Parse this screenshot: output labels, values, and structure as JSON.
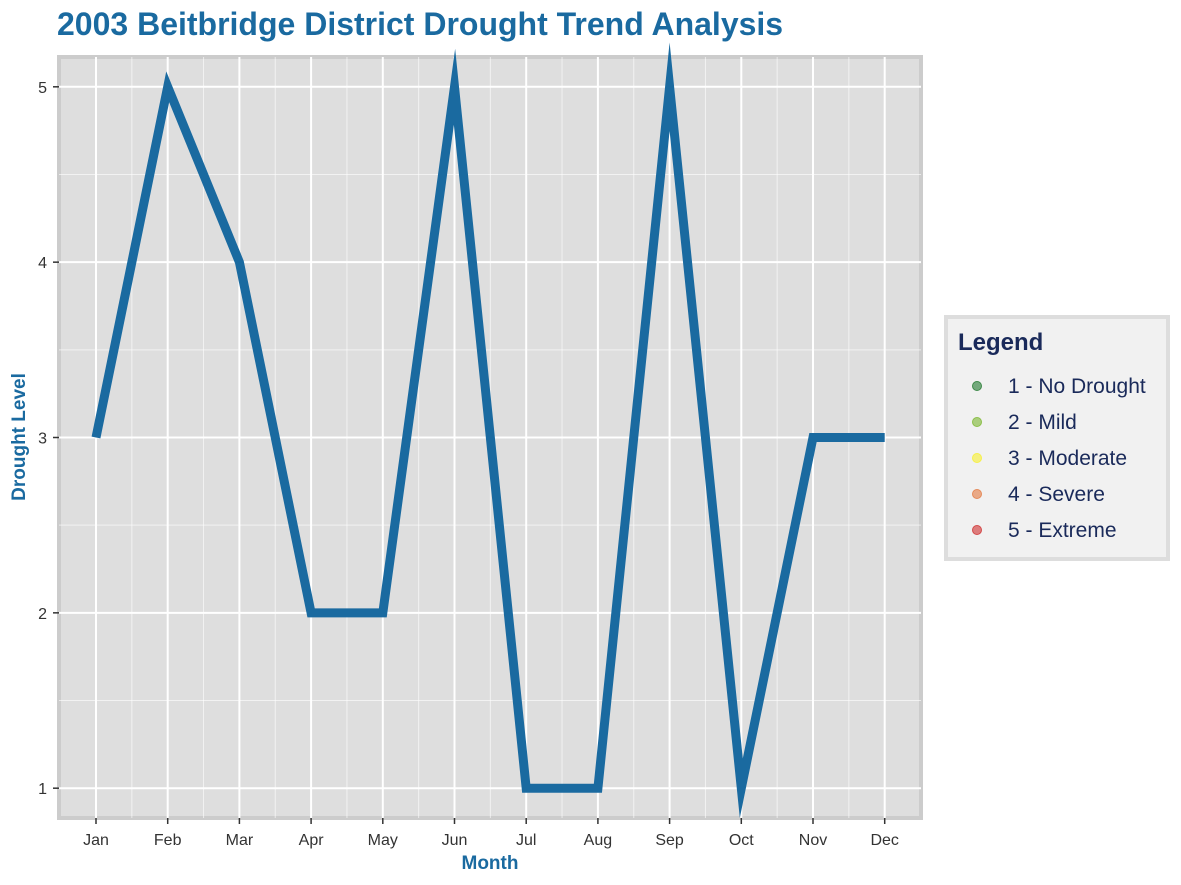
{
  "colors": {
    "title": "#1a6aa0",
    "axis_title": "#1a6aa0",
    "line": "#1a6aa0",
    "panel_bg": "#dedede",
    "panel_border": "#cccccc",
    "grid": "#ffffff",
    "legend_bg": "#f1f1f1",
    "legend_text": "#1a2a5a"
  },
  "chart_data": {
    "type": "line",
    "title": "2003 Beitbridge District Drought Trend Analysis",
    "xlabel": "Month",
    "ylabel": "Drought Level",
    "categories": [
      "Jan",
      "Feb",
      "Mar",
      "Apr",
      "May",
      "Jun",
      "Jul",
      "Aug",
      "Sep",
      "Oct",
      "Nov",
      "Dec"
    ],
    "series": [
      {
        "values": [
          3,
          5,
          4,
          2,
          2,
          5,
          1,
          1,
          5,
          1,
          3,
          3
        ]
      }
    ],
    "ylim": [
      0.83,
      5.17
    ],
    "yticks": [
      "1",
      "2",
      "3",
      "4",
      "5"
    ],
    "grid": true,
    "legend": {
      "title": "Legend",
      "position": "right",
      "entries": [
        {
          "label": "1 - No Drought",
          "color": "#3f8a4a"
        },
        {
          "label": "2 - Mild",
          "color": "#8cbf4a"
        },
        {
          "label": "3 - Moderate",
          "color": "#f6f04a"
        },
        {
          "label": "4 - Severe",
          "color": "#e58a5a"
        },
        {
          "label": "5 - Extreme",
          "color": "#d44a4a"
        }
      ]
    }
  }
}
